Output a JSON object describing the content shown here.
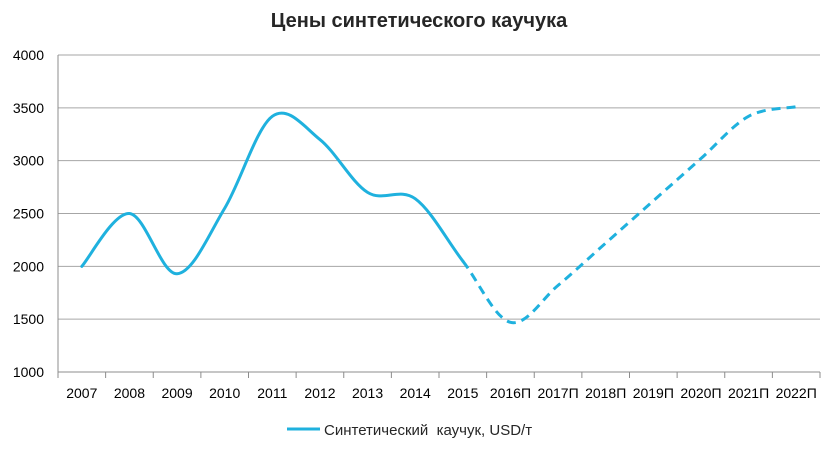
{
  "chart_data": {
    "type": "line",
    "title": "Цены синтетического каучука",
    "xlabel": "",
    "ylabel": "",
    "categories": [
      "2007",
      "2008",
      "2009",
      "2010",
      "2011",
      "2012",
      "2013",
      "2014",
      "2015",
      "2016П",
      "2017П",
      "2018П",
      "2019П",
      "2020П",
      "2021П",
      "2022П"
    ],
    "ylim": [
      1000,
      4000
    ],
    "yticks": [
      1000,
      1500,
      2000,
      2500,
      3000,
      3500,
      4000
    ],
    "grid": true,
    "legend": "bottom",
    "series": [
      {
        "name": "Синтетический  каучук, USD/т",
        "color": "#1fb1de",
        "values": [
          2000,
          2500,
          1930,
          2550,
          3420,
          3200,
          2700,
          2640,
          2050,
          1470,
          1820,
          2220,
          2620,
          3020,
          3420,
          3510
        ],
        "actual_through": "2015"
      }
    ]
  }
}
